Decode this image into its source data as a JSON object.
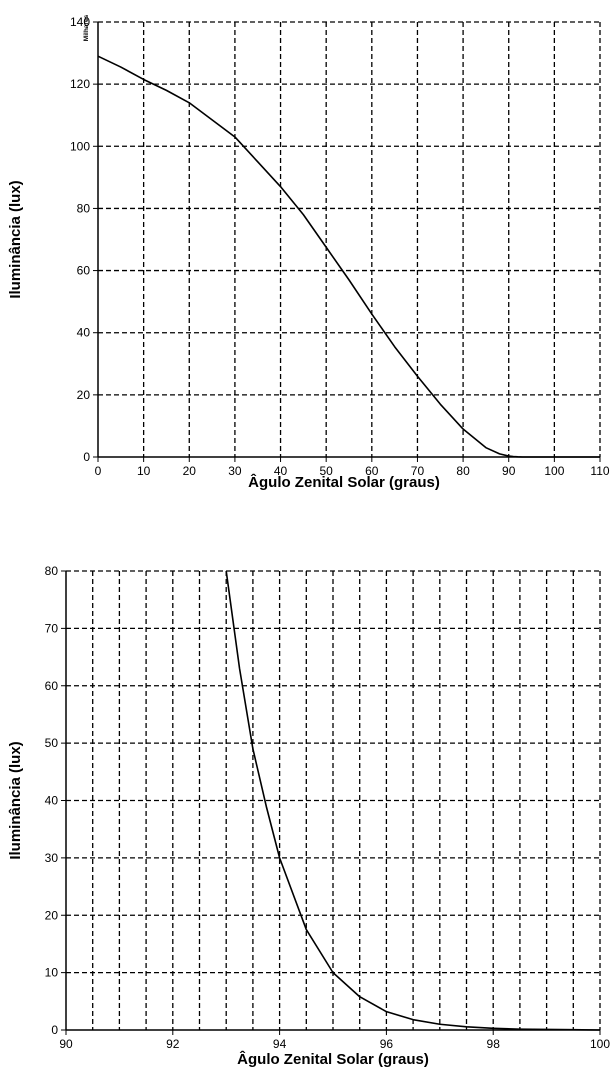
{
  "chart_data": [
    {
      "type": "line",
      "xlabel": "Âgulo Zenital Solar (graus)",
      "ylabel": "Iluminância (lux)",
      "yunit_label": "Milhares",
      "xlim": [
        0,
        110
      ],
      "ylim": [
        0,
        140
      ],
      "xticks": [
        0,
        10,
        20,
        30,
        40,
        50,
        60,
        70,
        80,
        90,
        100,
        110
      ],
      "yticks": [
        0,
        20,
        40,
        60,
        80,
        100,
        120,
        140
      ],
      "xtick_labels": [
        "0",
        "10",
        "20",
        "30",
        "40",
        "50",
        "60",
        "70",
        "80",
        "90",
        "100",
        "110"
      ],
      "ytick_labels": [
        "0",
        "20",
        "40",
        "60",
        "80",
        "100",
        "120",
        "140"
      ],
      "grid": true,
      "series": [
        {
          "x": [
            0,
            5,
            10,
            15,
            20,
            25,
            30,
            35,
            40,
            45,
            50,
            55,
            60,
            65,
            70,
            75,
            80,
            85,
            88,
            90,
            91,
            92,
            93,
            95,
            100,
            110
          ],
          "y": [
            129,
            125.5,
            121.5,
            118,
            114,
            108.5,
            103,
            95,
            87,
            78,
            67.5,
            57,
            46,
            35.5,
            26,
            17,
            9,
            3,
            1,
            0.3,
            0.15,
            0.05,
            0,
            0,
            0,
            0
          ]
        }
      ]
    },
    {
      "type": "line",
      "xlabel": "Âgulo Zenital Solar (graus)",
      "ylabel": "Iluminância (lux)",
      "xlim": [
        90,
        100
      ],
      "ylim": [
        0,
        80
      ],
      "xticks": [
        90,
        92,
        94,
        96,
        98,
        100
      ],
      "yticks": [
        0,
        10,
        20,
        30,
        40,
        50,
        60,
        70,
        80
      ],
      "xtick_labels": [
        "90",
        "92",
        "94",
        "96",
        "98",
        "100"
      ],
      "ytick_labels": [
        "0",
        "10",
        "20",
        "30",
        "40",
        "50",
        "60",
        "70",
        "80"
      ],
      "grid": true,
      "series": [
        {
          "x": [
            93,
            93.25,
            93.5,
            93.75,
            94,
            94.5,
            95,
            95.5,
            96,
            96.5,
            97,
            97.5,
            98,
            98.5,
            99,
            99.5,
            100
          ],
          "y": [
            80,
            63,
            49,
            39,
            30,
            17.5,
            10,
            5.8,
            3.2,
            1.8,
            1,
            0.55,
            0.3,
            0.15,
            0.1,
            0.05,
            0
          ]
        }
      ]
    }
  ]
}
